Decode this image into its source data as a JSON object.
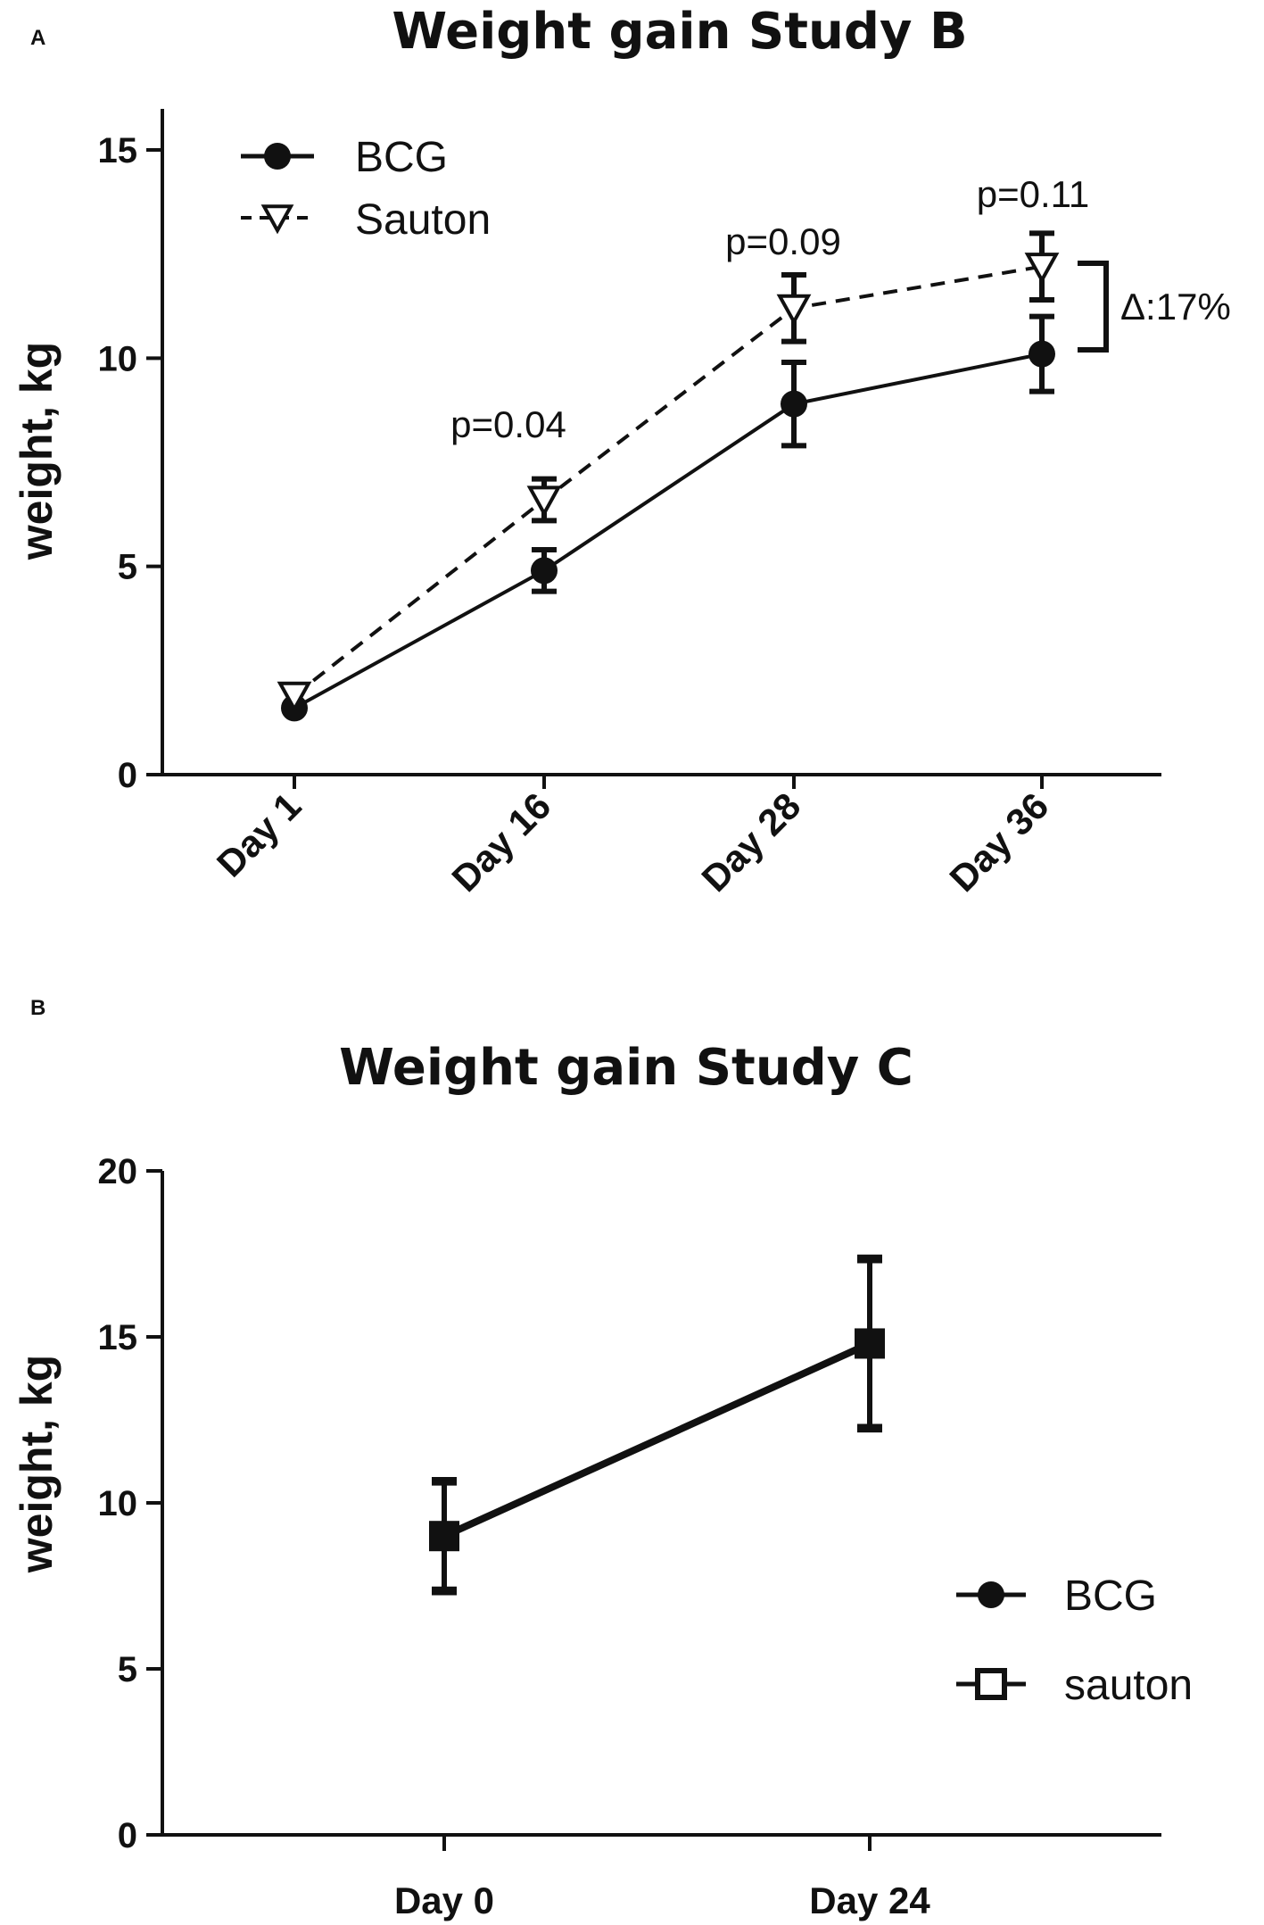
{
  "chart_data": [
    {
      "panel": "A",
      "type": "line",
      "title": "Weight gain Study B",
      "xlabel": "",
      "ylabel": "weight, kg",
      "ylim": [
        0,
        16
      ],
      "yticks": [
        0,
        5,
        10,
        15
      ],
      "categories": [
        "Day 1",
        "Day 16",
        "Day 28",
        "Day 36"
      ],
      "series": [
        {
          "name": "BCG",
          "marker": "circle",
          "line": "solid",
          "values": [
            1.6,
            4.9,
            8.9,
            10.1
          ],
          "errors": [
            0.1,
            0.5,
            1.0,
            0.9
          ]
        },
        {
          "name": "Sauton",
          "marker": "triangle-down-open",
          "line": "dashed",
          "values": [
            1.9,
            6.6,
            11.2,
            12.2
          ],
          "errors": [
            0.1,
            0.5,
            0.8,
            0.8
          ]
        }
      ],
      "annotations": [
        {
          "text": "p=0.04",
          "category": "Day 16"
        },
        {
          "text": "p=0.09",
          "category": "Day 28"
        },
        {
          "text": "p=0.11",
          "category": "Day 36"
        },
        {
          "text": "Δ:17%",
          "category": "Day 36"
        }
      ],
      "legend": "top-left"
    },
    {
      "panel": "B",
      "type": "line",
      "title": "Weight gain Study C",
      "xlabel": "",
      "ylabel": "weight, kg",
      "ylim": [
        0,
        20
      ],
      "yticks": [
        0,
        5,
        10,
        15,
        20
      ],
      "categories": [
        "Day 0",
        "Day 24"
      ],
      "series": [
        {
          "name": "BCG",
          "marker": "circle",
          "line": "solid",
          "values": [
            9.0,
            14.8
          ],
          "errors": [
            1.7,
            2.6
          ]
        },
        {
          "name": "sauton",
          "marker": "square-open",
          "line": "solid",
          "values": [
            9.0,
            14.8
          ],
          "errors": [
            1.6,
            2.5
          ]
        }
      ],
      "legend": "bottom-right"
    }
  ]
}
